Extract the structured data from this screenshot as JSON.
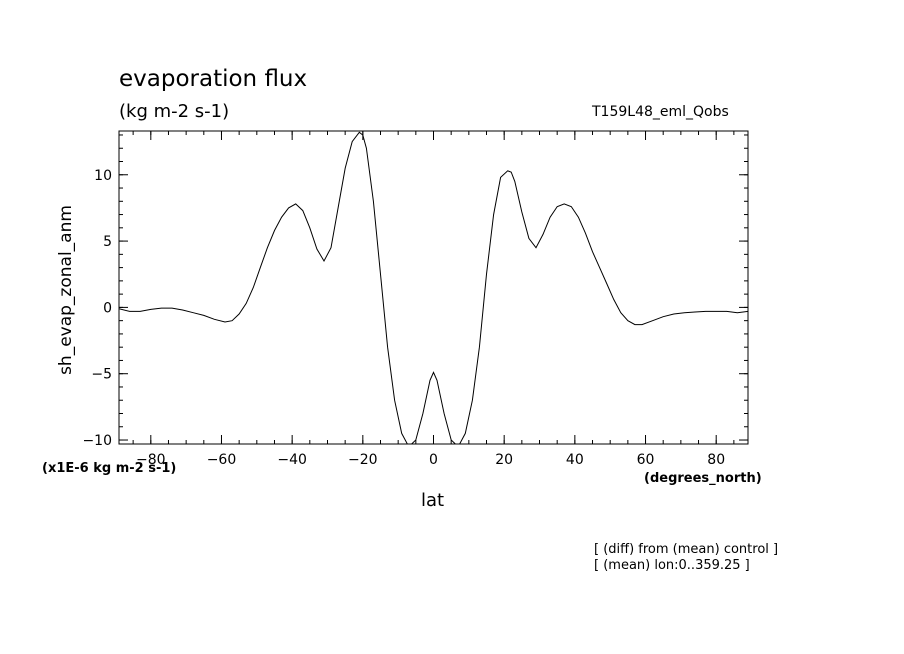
{
  "header": {
    "title": "evaporation flux",
    "subtitle": "(kg m-2 s-1)",
    "run_label": "T159L48_eml_Qobs"
  },
  "footer": {
    "note_1": "[ (diff) from (mean) control ]",
    "note_2": "[ (mean) lon:0..359.25 ]"
  },
  "chart_data": {
    "type": "line",
    "xlabel": "lat",
    "x_units": "(degrees_north)",
    "ylabel": "sh_evap_zonal_anm",
    "y_units": "(x1E-6 kg m-2 s-1)",
    "xlim": [
      -89,
      89
    ],
    "ylim": [
      -10.3,
      13.3
    ],
    "x_ticks": [
      -80,
      -60,
      -40,
      -20,
      0,
      20,
      40,
      60,
      80
    ],
    "y_ticks": [
      -10,
      -5,
      0,
      5,
      10
    ],
    "x_minor_step": 5,
    "y_minor_step": 1,
    "grid": false,
    "line_color": "#000000",
    "series": [
      {
        "x": [
          -89,
          -86,
          -83,
          -80,
          -77,
          -74,
          -71,
          -68,
          -65,
          -62,
          -59,
          -57,
          -55,
          -53,
          -51,
          -49,
          -47,
          -45,
          -43,
          -41,
          -39,
          -37,
          -35,
          -33,
          -31,
          -29,
          -27,
          -25,
          -23,
          -21,
          -20,
          -19,
          -17,
          -15,
          -13,
          -11,
          -9,
          -7,
          -5,
          -3,
          -1,
          0,
          1,
          3,
          5,
          7,
          9,
          11,
          13,
          15,
          17,
          19,
          21,
          22,
          23,
          25,
          27,
          29,
          31,
          33,
          35,
          37,
          39,
          41,
          43,
          45,
          47,
          49,
          51,
          53,
          55,
          57,
          59,
          62,
          65,
          68,
          71,
          74,
          77,
          80,
          83,
          86,
          89
        ],
        "y": [
          -0.1,
          -0.3,
          -0.3,
          -0.15,
          -0.05,
          -0.05,
          -0.2,
          -0.4,
          -0.6,
          -0.9,
          -1.1,
          -1.0,
          -0.5,
          0.3,
          1.5,
          3.0,
          4.5,
          5.8,
          6.8,
          7.5,
          7.8,
          7.3,
          6.0,
          4.4,
          3.5,
          4.5,
          7.5,
          10.5,
          12.5,
          13.2,
          13.0,
          12.0,
          8.0,
          2.5,
          -3.0,
          -7.0,
          -9.5,
          -10.5,
          -10.0,
          -8.0,
          -5.5,
          -4.9,
          -5.5,
          -8.0,
          -10.0,
          -10.5,
          -9.5,
          -7.0,
          -3.0,
          2.5,
          7.0,
          9.8,
          10.3,
          10.2,
          9.5,
          7.2,
          5.2,
          4.5,
          5.5,
          6.8,
          7.6,
          7.8,
          7.6,
          6.8,
          5.6,
          4.2,
          3.0,
          1.8,
          0.6,
          -0.4,
          -1.0,
          -1.3,
          -1.3,
          -1.0,
          -0.7,
          -0.5,
          -0.4,
          -0.35,
          -0.3,
          -0.3,
          -0.3,
          -0.4,
          -0.3
        ]
      }
    ]
  }
}
